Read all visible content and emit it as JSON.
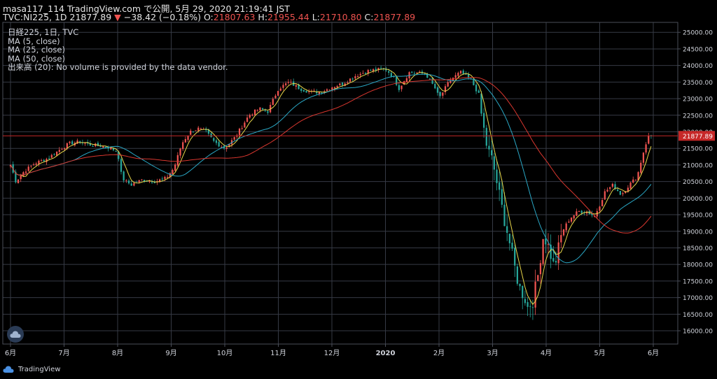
{
  "header": {
    "line1": "masa117_114 TradingView.com で公開, 5月 29, 2020 21:19:41 JST",
    "symbol": "TVC:NI225, 1D",
    "last": "21877.89",
    "arrow": "▼",
    "change": "−38.42 (−0.18%)",
    "o_label": "O:",
    "o_value": "21807.63",
    "h_label": "H:",
    "h_value": "21955.44",
    "l_label": "L:",
    "l_value": "21710.80",
    "c_label": "C:",
    "c_value": "21877.89"
  },
  "legend": {
    "title": "日経225, 1日, TVC",
    "ma5": "MA (5, close)",
    "ma25": "MA (25, close)",
    "ma50": "MA (50, close)",
    "volume": "出来高 (20): No volume is provided by the data vendor."
  },
  "footer": {
    "brand": "TradingView"
  },
  "colors": {
    "up": "#ef5350",
    "down": "#26a69a",
    "ma5": "#e8d64a",
    "ma25": "#2aa8c6",
    "ma50": "#d9372f",
    "grid": "#363a45",
    "price_line": "#c62828"
  },
  "chart_data": {
    "type": "candlestick",
    "y_axis": {
      "ylim": [
        15600,
        25300
      ],
      "ticks": [
        "25000.00",
        "24500.00",
        "24000.00",
        "23500.00",
        "23000.00",
        "22500.00",
        "22000.00",
        "21500.00",
        "21000.00",
        "20500.00",
        "20000.00",
        "19500.00",
        "19000.00",
        "18500.00",
        "18000.00",
        "17500.00",
        "17000.00",
        "16500.00",
        "16000.00"
      ],
      "current_label": "21877.89",
      "current_value": 21877.89
    },
    "x_axis": {
      "tick_labels": [
        "6月",
        "7月",
        "8月",
        "9月",
        "10月",
        "11月",
        "12月",
        "2020",
        "2月",
        "3月",
        "4月",
        "5月",
        "6月"
      ],
      "tick_positions": [
        0.0,
        1.0,
        2.0,
        3.0,
        4.0,
        5.0,
        6.0,
        7.0,
        8.0,
        9.0,
        10.0,
        11.0,
        12.0
      ]
    },
    "price_anchors": [
      [
        0.0,
        21000
      ],
      [
        0.1,
        20500
      ],
      [
        0.25,
        20800
      ],
      [
        0.45,
        21050
      ],
      [
        0.7,
        21200
      ],
      [
        0.95,
        21500
      ],
      [
        1.1,
        21650
      ],
      [
        1.3,
        21700
      ],
      [
        1.5,
        21600
      ],
      [
        1.8,
        21550
      ],
      [
        2.0,
        21400
      ],
      [
        2.08,
        20600
      ],
      [
        2.25,
        20400
      ],
      [
        2.45,
        20550
      ],
      [
        2.7,
        20500
      ],
      [
        2.9,
        20600
      ],
      [
        3.05,
        20900
      ],
      [
        3.2,
        21650
      ],
      [
        3.35,
        22000
      ],
      [
        3.5,
        22100
      ],
      [
        3.65,
        22000
      ],
      [
        3.8,
        21700
      ],
      [
        4.0,
        21500
      ],
      [
        4.2,
        21850
      ],
      [
        4.45,
        22500
      ],
      [
        4.65,
        22700
      ],
      [
        4.8,
        22600
      ],
      [
        5.0,
        23300
      ],
      [
        5.2,
        23500
      ],
      [
        5.4,
        23300
      ],
      [
        5.6,
        23200
      ],
      [
        5.8,
        23200
      ],
      [
        6.0,
        23350
      ],
      [
        6.2,
        23450
      ],
      [
        6.45,
        23700
      ],
      [
        6.7,
        23850
      ],
      [
        7.0,
        23900
      ],
      [
        7.15,
        23650
      ],
      [
        7.25,
        23300
      ],
      [
        7.45,
        23800
      ],
      [
        7.75,
        23750
      ],
      [
        7.95,
        23250
      ],
      [
        8.0,
        23000
      ],
      [
        8.2,
        23550
      ],
      [
        8.4,
        23800
      ],
      [
        8.6,
        23550
      ],
      [
        8.75,
        23100
      ],
      [
        8.8,
        22400
      ],
      [
        8.9,
        21500
      ],
      [
        9.0,
        21100
      ],
      [
        9.1,
        20300
      ],
      [
        9.2,
        19500
      ],
      [
        9.3,
        18800
      ],
      [
        9.4,
        18000
      ],
      [
        9.5,
        17300
      ],
      [
        9.6,
        17000
      ],
      [
        9.65,
        16700
      ],
      [
        9.75,
        16900
      ],
      [
        9.85,
        17700
      ],
      [
        9.95,
        18900
      ],
      [
        10.05,
        18500
      ],
      [
        10.15,
        17900
      ],
      [
        10.3,
        19000
      ],
      [
        10.45,
        19400
      ],
      [
        10.6,
        19600
      ],
      [
        10.75,
        19600
      ],
      [
        10.9,
        19450
      ],
      [
        11.0,
        19800
      ],
      [
        11.1,
        20200
      ],
      [
        11.25,
        20400
      ],
      [
        11.4,
        20100
      ],
      [
        11.55,
        20400
      ],
      [
        11.7,
        20650
      ],
      [
        11.8,
        21300
      ],
      [
        11.9,
        21850
      ],
      [
        11.96,
        21877.89
      ]
    ],
    "candles_count": 250,
    "series": [
      {
        "name": "MA (5, close)",
        "period": 5
      },
      {
        "name": "MA (25, close)",
        "period": 25
      },
      {
        "name": "MA (50, close)",
        "period": 50
      }
    ]
  }
}
